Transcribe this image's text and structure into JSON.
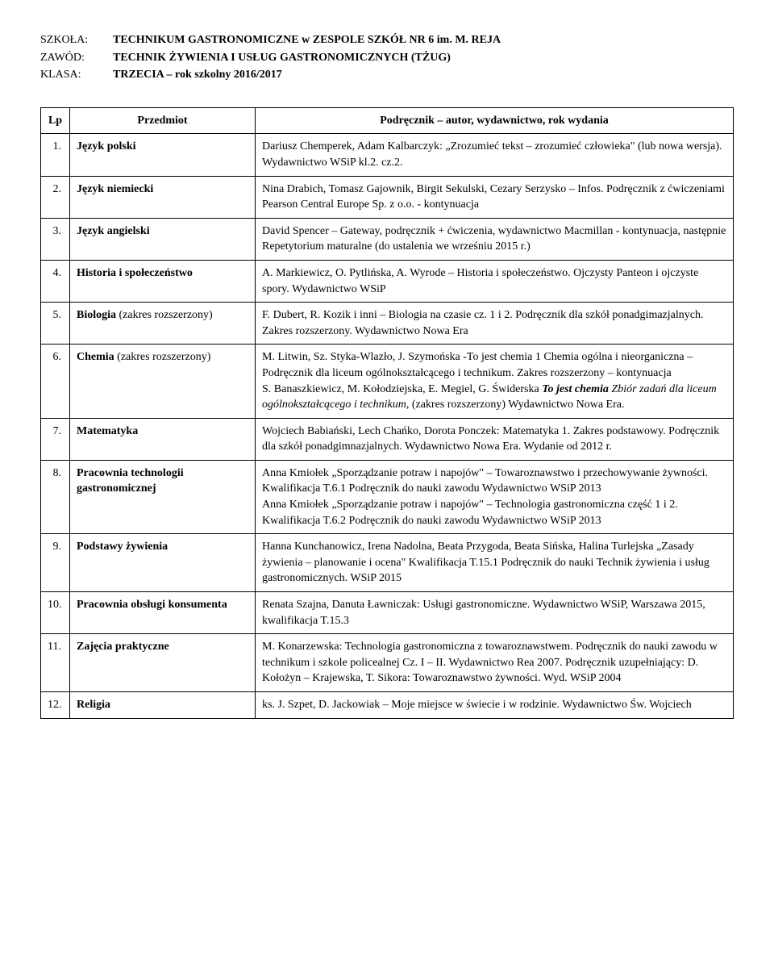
{
  "header": {
    "schoolLabel": "SZKOŁA:",
    "schoolValue": "TECHNIKUM GASTRONOMICZNE w ZESPOLE SZKÓŁ NR 6 im. M. REJA",
    "professionLabel": "ZAWÓD:",
    "professionValue": "TECHNIK ŻYWIENIA I USŁUG GASTRONOMICZNYCH (TŻUG)",
    "classLabel": "KLASA:",
    "classValue": "TRZECIA – rok szkolny 2016/2017"
  },
  "tableHead": {
    "lp": "Lp",
    "subject": "Przedmiot",
    "textbook": "Podręcznik – autor, wydawnictwo, rok wydania"
  },
  "rows": [
    {
      "num": "1.",
      "subject": "Język polski",
      "book": "Dariusz Chemperek, Adam Kalbarczyk: „Zrozumieć tekst – zrozumieć człowieka\" (lub nowa wersja). Wydawnictwo WSiP kl.2. cz.2."
    },
    {
      "num": "2.",
      "subject": "Język niemiecki",
      "book": "Nina Drabich, Tomasz Gajownik, Birgit Sekulski, Cezary Serzysko – Infos. Podręcznik z ćwiczeniami Pearson Central Europe Sp. z o.o. - kontynuacja"
    },
    {
      "num": "3.",
      "subject": "Język angielski",
      "book": "David Spencer – Gateway, podręcznik + ćwiczenia, wydawnictwo Macmillan - kontynuacja, następnie Repetytorium maturalne (do ustalenia we wrześniu 2015 r.)"
    },
    {
      "num": "4.",
      "subject": "Historia i społeczeństwo",
      "book": "A. Markiewicz, O. Pytlińska, A. Wyrode – Historia i społeczeństwo. Ojczysty Panteon i ojczyste spory. Wydawnictwo WSiP"
    },
    {
      "num": "5.",
      "subjectBold": "Biologia",
      "subjectNormal": " (zakres rozszerzony)",
      "book": "F. Dubert, R. Kozik i inni – Biologia na czasie cz. 1 i 2. Podręcznik dla szkół ponadgimazjalnych. Zakres rozszerzony. Wydawnictwo Nowa Era"
    },
    {
      "num": "6.",
      "subjectBold": "Chemia",
      "subjectNormal": " (zakres rozszerzony)",
      "book_a": "M. Litwin, Sz. Styka-Wlazło, J. Szymońska -To jest chemia 1 Chemia ogólna i nieorganiczna – Podręcznik dla liceum ogólnokształcącego i technikum. Zakres rozszerzony – kontynuacja",
      "book_b": "S. Banaszkiewicz, M. Kołodziejska, E. Megiel, G. Świderska ",
      "book_bi": "To jest chemia ",
      "book_i": "Zbiór zadań dla liceum ogólnokształcącego i technikum, ",
      "book_c": "(zakres rozszerzony) Wydawnictwo Nowa Era."
    },
    {
      "num": "7.",
      "subject": "Matematyka",
      "book": "Wojciech Babiański, Lech Chańko, Dorota Ponczek: Matematyka 1. Zakres podstawowy. Podręcznik dla szkół ponadgimnazjalnych. Wydawnictwo Nowa Era. Wydanie od 2012 r."
    },
    {
      "num": "8.",
      "subject": "Pracownia technologii gastronomicznej",
      "book_a": "Anna Kmiołek „Sporządzanie potraw i napojów\" – Towaroznawstwo i przechowywanie żywności. Kwalifikacja T.6.1 Podręcznik do nauki zawodu Wydawnictwo WSiP 2013",
      "book_b": "Anna Kmiołek „Sporządzanie potraw i napojów\" – Technologia gastronomiczna część 1 i 2. Kwalifikacja T.6.2 Podręcznik do nauki zawodu Wydawnictwo WSiP 2013"
    },
    {
      "num": "9.",
      "subject": "Podstawy żywienia",
      "book": "Hanna Kunchanowicz, Irena Nadolna, Beata Przygoda, Beata Sińska, Halina Turlejska „Zasady żywienia – planowanie i ocena\" Kwalifikacja T.15.1 Podręcznik do nauki Technik żywienia i usług gastronomicznych. WSiP 2015"
    },
    {
      "num": "10.",
      "subject": "Pracownia obsługi konsumenta",
      "book": "Renata Szajna, Danuta Ławniczak: Usługi gastronomiczne. Wydawnictwo WSiP, Warszawa 2015, kwalifikacja T.15.3"
    },
    {
      "num": "11.",
      "subject": "Zajęcia praktyczne",
      "book": "M. Konarzewska: Technologia gastronomiczna z towaroznawstwem. Podręcznik do nauki zawodu w technikum i szkole policealnej Cz. I – II. Wydawnictwo Rea 2007. Podręcznik uzupełniający: D. Kołożyn – Krajewska, T. Sikora: Towaroznawstwo żywności. Wyd. WSiP 2004"
    },
    {
      "num": "12.",
      "subject": "Religia",
      "book": "ks. J. Szpet, D. Jackowiak – Moje miejsce w świecie i w rodzinie. Wydawnictwo Św. Wojciech"
    }
  ]
}
